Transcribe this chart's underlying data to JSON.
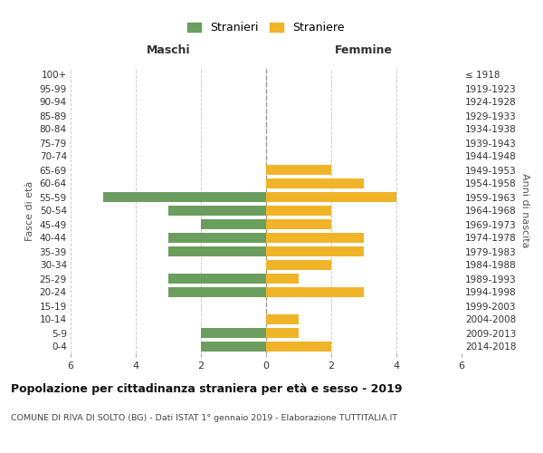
{
  "age_groups": [
    "0-4",
    "5-9",
    "10-14",
    "15-19",
    "20-24",
    "25-29",
    "30-34",
    "35-39",
    "40-44",
    "45-49",
    "50-54",
    "55-59",
    "60-64",
    "65-69",
    "70-74",
    "75-79",
    "80-84",
    "85-89",
    "90-94",
    "95-99",
    "100+"
  ],
  "birth_years": [
    "2014-2018",
    "2009-2013",
    "2004-2008",
    "1999-2003",
    "1994-1998",
    "1989-1993",
    "1984-1988",
    "1979-1983",
    "1974-1978",
    "1969-1973",
    "1964-1968",
    "1959-1963",
    "1954-1958",
    "1949-1953",
    "1944-1948",
    "1939-1943",
    "1934-1938",
    "1929-1933",
    "1924-1928",
    "1919-1923",
    "≤ 1918"
  ],
  "males": [
    2,
    2,
    0,
    0,
    3,
    3,
    0,
    3,
    3,
    2,
    3,
    5,
    0,
    0,
    0,
    0,
    0,
    0,
    0,
    0,
    0
  ],
  "females": [
    2,
    1,
    1,
    0,
    3,
    1,
    2,
    3,
    3,
    2,
    2,
    4,
    3,
    2,
    0,
    0,
    0,
    0,
    0,
    0,
    0
  ],
  "male_color": "#6b9e5e",
  "female_color": "#f0b429",
  "background_color": "#ffffff",
  "grid_color": "#cccccc",
  "grid_linestyle": "--",
  "xlim": 6,
  "title": "Popolazione per cittadinanza straniera per età e sesso - 2019",
  "subtitle": "COMUNE DI RIVA DI SOLTO (BG) - Dati ISTAT 1° gennaio 2019 - Elaborazione TUTTITALIA.IT",
  "xlabel_left": "Maschi",
  "xlabel_right": "Femmine",
  "ylabel_left": "Fasce di età",
  "ylabel_right": "Anni di nascita",
  "legend_male": "Stranieri",
  "legend_female": "Straniere",
  "bar_height": 0.75,
  "xticks": [
    -6,
    -4,
    -2,
    0,
    2,
    4,
    6
  ]
}
